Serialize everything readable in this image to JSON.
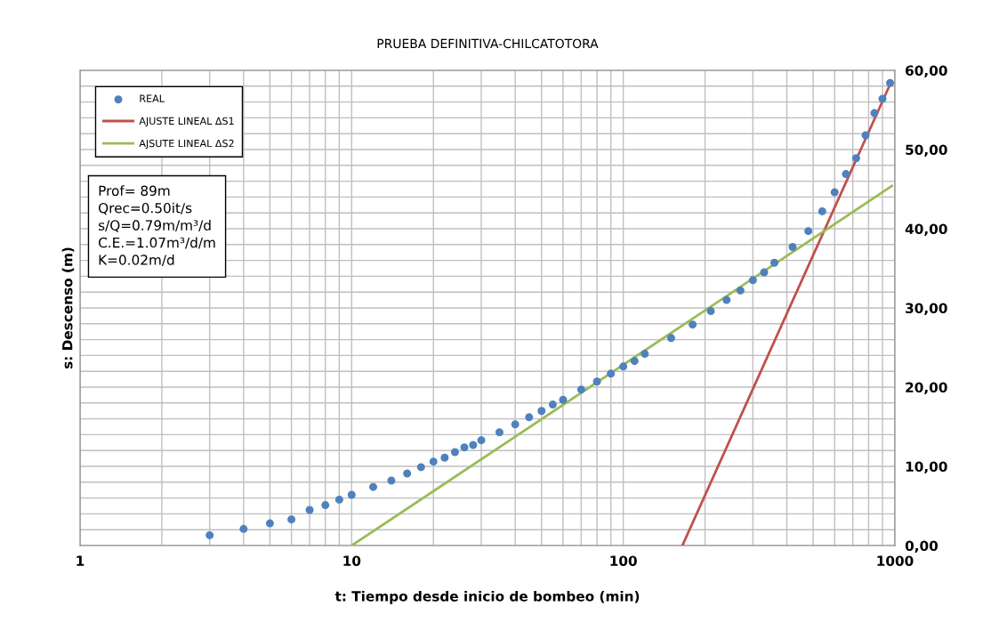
{
  "chart_data": {
    "type": "scatter",
    "title": "PRUEBA DEFINITIVA-CHILCATOTORA",
    "xlabel": "t: Tiempo desde inicio de bombeo (min)",
    "ylabel": "s: Descenso (m)",
    "log": "x",
    "xlim": [
      1,
      1000
    ],
    "xticks": [
      1,
      10,
      100,
      1000
    ],
    "ylim": [
      0,
      60
    ],
    "yticks": [
      {
        "value": 0,
        "label": "0,00"
      },
      {
        "value": 10,
        "label": "10,00"
      },
      {
        "value": 20,
        "label": "20,00"
      },
      {
        "value": 30,
        "label": "30,00"
      },
      {
        "value": 40,
        "label": "40,00"
      },
      {
        "value": 50,
        "label": "50,00"
      },
      {
        "value": 60,
        "label": "60,00"
      }
    ],
    "grid": true,
    "legend": "top left",
    "annotations": [
      "Prof= 89m\nQrec=0.50it/s\ns/Q=0.79m/m³/d\nC.E.=1.07m³/d/m\nK=0.02m/d"
    ],
    "series": [
      {
        "name": "REAL",
        "marker": "circle",
        "color": "#4f81bd",
        "x": [
          3,
          4,
          5,
          6,
          7,
          8,
          9,
          10,
          12,
          14,
          16,
          18,
          20,
          22,
          24,
          26,
          28,
          30,
          35,
          40,
          45,
          50,
          55,
          60,
          70,
          80,
          90,
          100,
          110,
          120,
          150,
          180,
          210,
          240,
          270,
          300,
          330,
          360,
          420,
          480,
          540,
          600,
          660,
          720,
          780,
          840,
          900,
          960
        ],
        "values": [
          1.3,
          2.1,
          2.8,
          3.3,
          4.5,
          5.1,
          5.8,
          6.4,
          7.4,
          8.2,
          9.1,
          9.9,
          10.6,
          11.1,
          11.8,
          12.4,
          12.7,
          13.3,
          14.3,
          15.3,
          16.2,
          17.0,
          17.8,
          18.4,
          19.7,
          20.7,
          21.7,
          22.6,
          23.3,
          24.2,
          26.2,
          27.9,
          29.6,
          31.0,
          32.2,
          33.5,
          34.5,
          35.7,
          37.7,
          39.7,
          42.2,
          44.6,
          46.9,
          48.9,
          51.8,
          54.6,
          56.4,
          58.4
        ]
      },
      {
        "name": "AJUSTE LINEAL ΔS1",
        "type": "line",
        "line_style": "solid",
        "color": "#c0504d",
        "x": [
          165,
          965
        ],
        "values": [
          0,
          58.4
        ]
      },
      {
        "name": "AJSUTE LINEAL ΔS2",
        "type": "line",
        "line_style": "solid",
        "color": "#9bbb59",
        "x": [
          10,
          975
        ],
        "values": [
          0,
          45.4
        ]
      }
    ]
  }
}
